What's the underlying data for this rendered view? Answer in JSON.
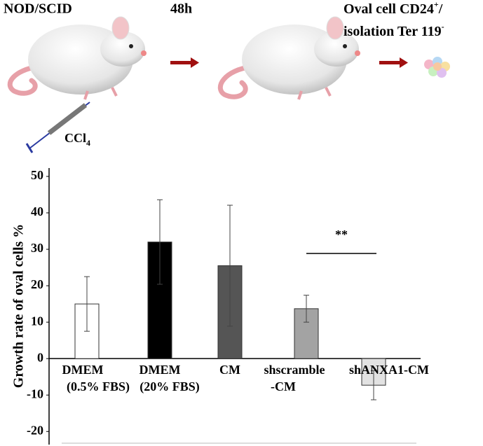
{
  "diagram": {
    "step1": "NOD/SCID",
    "step2": "48h",
    "step3_line1": "Oval cell CD24",
    "step3_line1_sup": "+",
    "step3_line1_end": "/",
    "step3_line2": "isolation Ter 119",
    "step3_line2_sup": "-",
    "drug": "CCl",
    "drug_sub": "4"
  },
  "chart_data": {
    "type": "bar",
    "ylabel": "Growth rate of oval cells %",
    "categories": [
      [
        "DMEM",
        "(0.5% FBS)"
      ],
      [
        "DMEM",
        "(20% FBS)"
      ],
      [
        "CM"
      ],
      [
        "shscramble",
        "-CM"
      ],
      [
        "shANXA1-CM"
      ]
    ],
    "values": [
      15,
      32,
      25.5,
      13.7,
      -7.3
    ],
    "errors": [
      7.5,
      11.6,
      16.6,
      3.7,
      4
    ],
    "colors": [
      "#ffffff",
      "#000000",
      "#555555",
      "#a3a3a3",
      "#e2e2e2"
    ],
    "ylim": [
      -23.6,
      52.3
    ],
    "yticks": [
      -20,
      -10,
      0,
      10,
      20,
      30,
      40,
      50
    ],
    "annotation": "**"
  }
}
